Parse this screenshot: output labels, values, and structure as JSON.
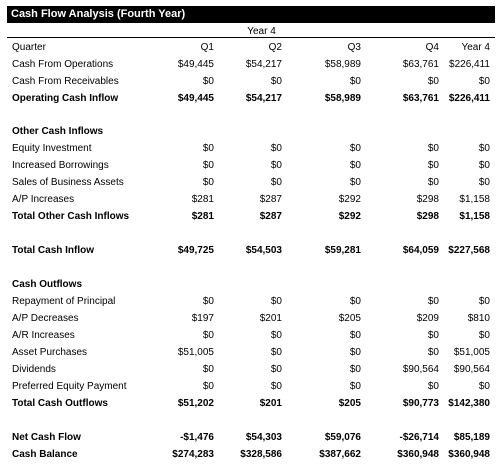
{
  "title": "Cash Flow Analysis (Fourth Year)",
  "year_header": "Year 4",
  "header_row": {
    "label": "Quarter",
    "q1": "Q1",
    "q2": "Q2",
    "q3": "Q3",
    "q4": "Q4",
    "y4": "Year 4"
  },
  "rows": [
    {
      "id": "cash-from-operations",
      "label": "Cash From Operations",
      "q1": "$49,445",
      "q2": "$54,217",
      "q3": "$58,989",
      "q4": "$63,761",
      "y4": "$226,411",
      "bold": false
    },
    {
      "id": "cash-from-receivables",
      "label": "Cash From Receivables",
      "q1": "$0",
      "q2": "$0",
      "q3": "$0",
      "q4": "$0",
      "y4": "$0",
      "bold": false
    },
    {
      "id": "operating-cash-inflow",
      "label": "Operating Cash Inflow",
      "q1": "$49,445",
      "q2": "$54,217",
      "q3": "$58,989",
      "q4": "$63,761",
      "y4": "$226,411",
      "bold": true
    },
    {
      "id": "other-cash-inflows-heading",
      "label": "Other Cash Inflows",
      "bold": true
    },
    {
      "id": "equity-investment",
      "label": "Equity Investment",
      "q1": "$0",
      "q2": "$0",
      "q3": "$0",
      "q4": "$0",
      "y4": "$0",
      "bold": false
    },
    {
      "id": "increased-borrowings",
      "label": "Increased Borrowings",
      "q1": "$0",
      "q2": "$0",
      "q3": "$0",
      "q4": "$0",
      "y4": "$0",
      "bold": false
    },
    {
      "id": "sales-of-business-assets",
      "label": "Sales of Business Assets",
      "q1": "$0",
      "q2": "$0",
      "q3": "$0",
      "q4": "$0",
      "y4": "$0",
      "bold": false
    },
    {
      "id": "ap-increases",
      "label": "A/P Increases",
      "q1": "$281",
      "q2": "$287",
      "q3": "$292",
      "q4": "$298",
      "y4": "$1,158",
      "bold": false
    },
    {
      "id": "total-other-cash-inflows",
      "label": "Total Other Cash Inflows",
      "q1": "$281",
      "q2": "$287",
      "q3": "$292",
      "q4": "$298",
      "y4": "$1,158",
      "bold": true
    },
    {
      "id": "total-cash-inflow",
      "label": "Total Cash Inflow",
      "q1": "$49,725",
      "q2": "$54,503",
      "q3": "$59,281",
      "q4": "$64,059",
      "y4": "$227,568",
      "bold": true
    },
    {
      "id": "cash-outflows-heading",
      "label": "Cash Outflows",
      "bold": true
    },
    {
      "id": "repayment-of-principal",
      "label": "Repayment of Principal",
      "q1": "$0",
      "q2": "$0",
      "q3": "$0",
      "q4": "$0",
      "y4": "$0",
      "bold": false
    },
    {
      "id": "ap-decreases",
      "label": "A/P Decreases",
      "q1": "$197",
      "q2": "$201",
      "q3": "$205",
      "q4": "$209",
      "y4": "$810",
      "bold": false
    },
    {
      "id": "ar-increases",
      "label": "A/R Increases",
      "q1": "$0",
      "q2": "$0",
      "q3": "$0",
      "q4": "$0",
      "y4": "$0",
      "bold": false
    },
    {
      "id": "asset-purchases",
      "label": "Asset Purchases",
      "q1": "$51,005",
      "q2": "$0",
      "q3": "$0",
      "q4": "$0",
      "y4": "$51,005",
      "bold": false
    },
    {
      "id": "dividends",
      "label": "Dividends",
      "q1": "$0",
      "q2": "$0",
      "q3": "$0",
      "q4": "$90,564",
      "y4": "$90,564",
      "bold": false
    },
    {
      "id": "preferred-equity-payment",
      "label": "Preferred Equity Payment",
      "q1": "$0",
      "q2": "$0",
      "q3": "$0",
      "q4": "$0",
      "y4": "$0",
      "bold": false
    },
    {
      "id": "total-cash-outflows",
      "label": "Total Cash Outflows",
      "q1": "$51,202",
      "q2": "$201",
      "q3": "$205",
      "q4": "$90,773",
      "y4": "$142,380",
      "bold": true
    },
    {
      "id": "net-cash-flow",
      "label": "Net Cash Flow",
      "q1": "-$1,476",
      "q2": "$54,303",
      "q3": "$59,076",
      "q4": "-$26,714",
      "y4": "$85,189",
      "bold": true
    },
    {
      "id": "cash-balance",
      "label": "Cash Balance",
      "q1": "$274,283",
      "q2": "$328,586",
      "q3": "$387,662",
      "q4": "$360,948",
      "y4": "$360,948",
      "bold": true
    }
  ]
}
